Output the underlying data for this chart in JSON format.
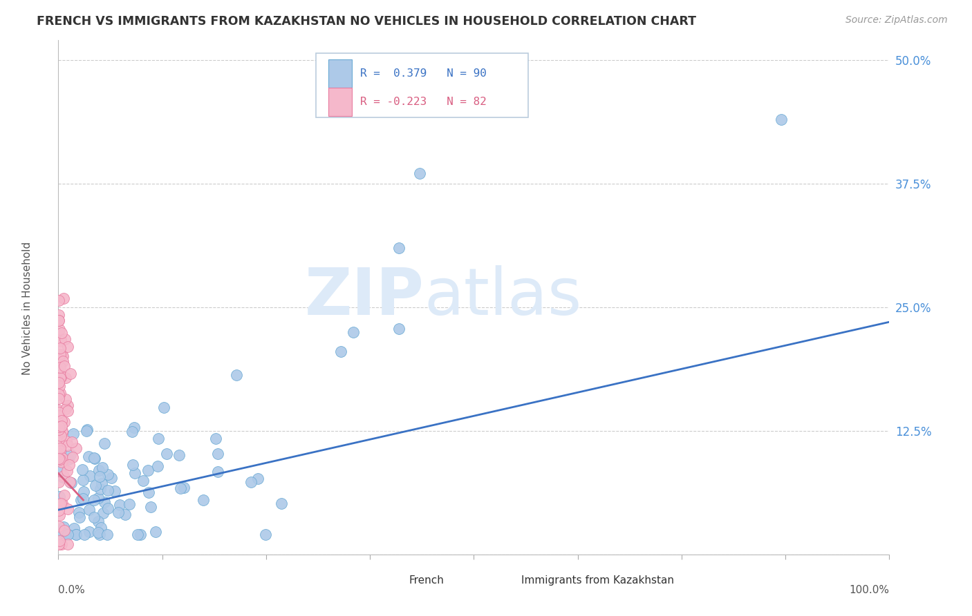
{
  "title": "FRENCH VS IMMIGRANTS FROM KAZAKHSTAN NO VEHICLES IN HOUSEHOLD CORRELATION CHART",
  "source": "Source: ZipAtlas.com",
  "ylabel": "No Vehicles in Household",
  "y_ticks": [
    0.0,
    0.125,
    0.25,
    0.375,
    0.5
  ],
  "y_tick_labels": [
    "",
    "12.5%",
    "25.0%",
    "37.5%",
    "50.0%"
  ],
  "x_range": [
    0.0,
    1.0
  ],
  "y_range": [
    0.0,
    0.52
  ],
  "color_french": "#adc9e8",
  "color_kazakhstan": "#f5b8cb",
  "color_french_edge": "#6aaad4",
  "color_kazakhstan_edge": "#e87ca0",
  "color_line_french": "#3a72c4",
  "color_line_kazakhstan": "#d95f82",
  "watermark_zip_color": "#dde8f5",
  "watermark_atlas_color": "#dde8f5",
  "background_color": "#ffffff",
  "french_line_x0": 0.0,
  "french_line_y0": 0.045,
  "french_line_x1": 1.0,
  "french_line_y1": 0.235,
  "kaz_line_x0": 0.0,
  "kaz_line_y0": 0.082,
  "kaz_line_x1": 0.03,
  "kaz_line_y1": 0.055
}
